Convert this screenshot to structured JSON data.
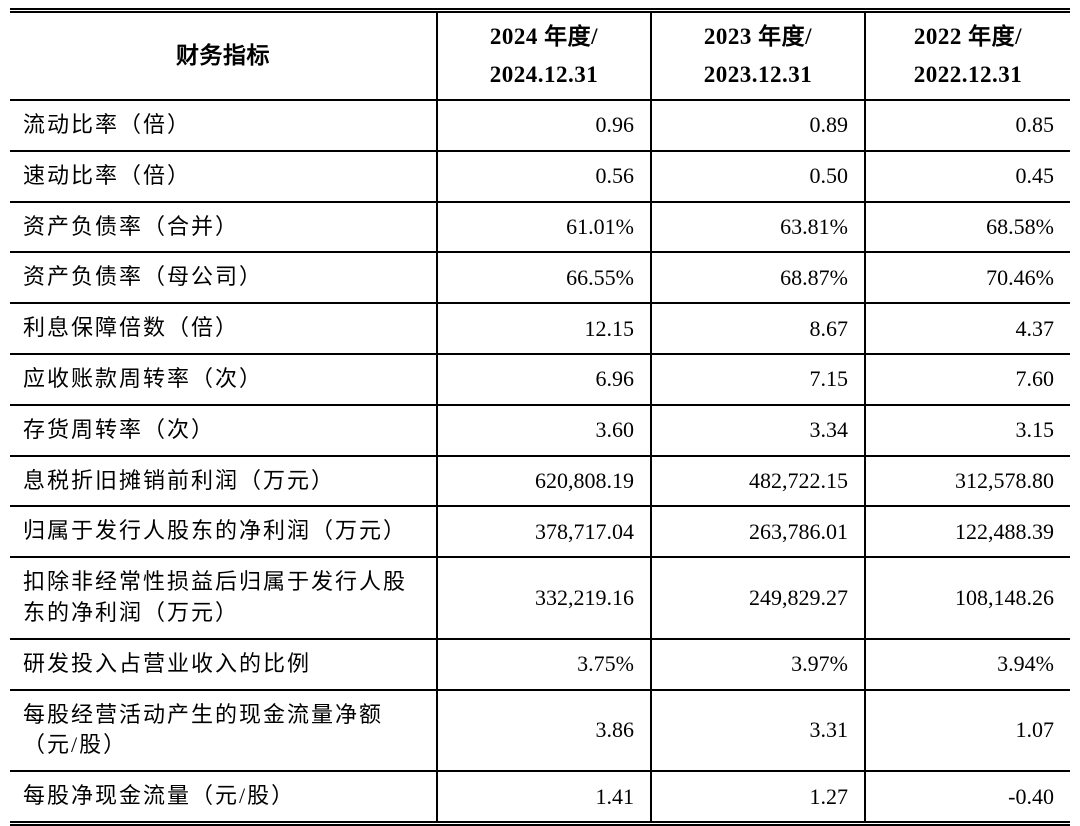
{
  "colors": {
    "text": "#000000",
    "background": "#ffffff",
    "border": "#000000"
  },
  "table": {
    "header": {
      "metric_label": "财务指标",
      "periods": [
        {
          "line1": "2024 年度/",
          "line2": "2024.12.31"
        },
        {
          "line1": "2023 年度/",
          "line2": "2023.12.31"
        },
        {
          "line1": "2022 年度/",
          "line2": "2022.12.31"
        }
      ]
    },
    "rows": [
      {
        "label": "流动比率（倍）",
        "values": [
          "0.96",
          "0.89",
          "0.85"
        ]
      },
      {
        "label": "速动比率（倍）",
        "values": [
          "0.56",
          "0.50",
          "0.45"
        ]
      },
      {
        "label": "资产负债率（合并）",
        "values": [
          "61.01%",
          "63.81%",
          "68.58%"
        ]
      },
      {
        "label": "资产负债率（母公司）",
        "values": [
          "66.55%",
          "68.87%",
          "70.46%"
        ]
      },
      {
        "label": "利息保障倍数（倍）",
        "values": [
          "12.15",
          "8.67",
          "4.37"
        ]
      },
      {
        "label": "应收账款周转率（次）",
        "values": [
          "6.96",
          "7.15",
          "7.60"
        ]
      },
      {
        "label": "存货周转率（次）",
        "values": [
          "3.60",
          "3.34",
          "3.15"
        ]
      },
      {
        "label": "息税折旧摊销前利润（万元）",
        "values": [
          "620,808.19",
          "482,722.15",
          "312,578.80"
        ]
      },
      {
        "label": "归属于发行人股东的净利润（万元）",
        "values": [
          "378,717.04",
          "263,786.01",
          "122,488.39"
        ]
      },
      {
        "label": "扣除非经常性损益后归属于发行人股东的净利润（万元）",
        "values": [
          "332,219.16",
          "249,829.27",
          "108,148.26"
        ]
      },
      {
        "label": "研发投入占营业收入的比例",
        "values": [
          "3.75%",
          "3.97%",
          "3.94%"
        ]
      },
      {
        "label": "每股经营活动产生的现金流量净额（元/股）",
        "values": [
          "3.86",
          "3.31",
          "1.07"
        ]
      },
      {
        "label": "每股净现金流量（元/股）",
        "values": [
          "1.41",
          "1.27",
          "-0.40"
        ]
      }
    ]
  }
}
